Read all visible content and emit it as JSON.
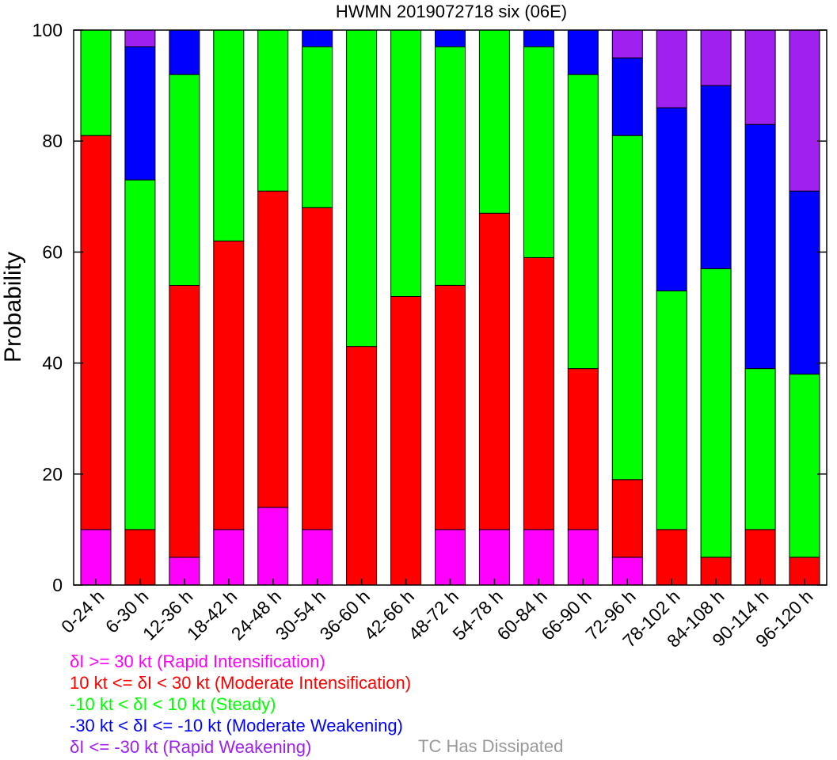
{
  "chart_data": {
    "type": "bar",
    "stacked": true,
    "title": "HWMN 2019072718 six (06E)",
    "xlabel": "",
    "ylabel": "Probability",
    "ylim": [
      0,
      100
    ],
    "yticks": [
      0,
      20,
      40,
      60,
      80,
      100
    ],
    "grid": false,
    "categories": [
      "0-24 h",
      "6-30 h",
      "12-36 h",
      "18-42 h",
      "24-48 h",
      "30-54 h",
      "36-60 h",
      "42-66 h",
      "48-72 h",
      "54-78 h",
      "60-84 h",
      "66-90 h",
      "72-96 h",
      "78-102 h",
      "84-108 h",
      "90-114 h",
      "96-120 h"
    ],
    "series": [
      {
        "name": "δI >= 30 kt (Rapid Intensification)",
        "color": "#ff00ff",
        "values": [
          10,
          0,
          5,
          10,
          14,
          10,
          0,
          0,
          10,
          10,
          10,
          10,
          5,
          0,
          0,
          0,
          0
        ]
      },
      {
        "name": "10 kt <= δI < 30 kt (Moderate Intensification)",
        "color": "#ff0000",
        "values": [
          71,
          10,
          49,
          52,
          57,
          58,
          43,
          52,
          44,
          57,
          49,
          29,
          14,
          10,
          5,
          10,
          5
        ]
      },
      {
        "name": "-10 kt < δI < 10 kt (Steady)",
        "color": "#00ff00",
        "values": [
          19,
          63,
          38,
          38,
          29,
          29,
          57,
          48,
          43,
          33,
          38,
          53,
          62,
          43,
          52,
          29,
          33
        ]
      },
      {
        "name": "-30 kt < δI <= -10 kt (Moderate Weakening)",
        "color": "#0000ff",
        "values": [
          0,
          24,
          8,
          0,
          0,
          3,
          0,
          0,
          3,
          0,
          3,
          8,
          14,
          33,
          33,
          44,
          33
        ]
      },
      {
        "name": "δI <= -30 kt (Rapid Weakening)",
        "color": "#a020f0",
        "values": [
          0,
          3,
          0,
          0,
          0,
          0,
          0,
          0,
          0,
          0,
          0,
          0,
          5,
          14,
          10,
          17,
          29
        ]
      }
    ]
  },
  "legend": {
    "items": [
      {
        "label": "δI >= 30 kt (Rapid Intensification)",
        "color": "#ff00ff"
      },
      {
        "label": "10 kt <= δI < 30 kt (Moderate Intensification)",
        "color": "#ff0000"
      },
      {
        "label": "-10 kt < δI < 10 kt (Steady)",
        "color": "#00ff00"
      },
      {
        "label": "-30 kt < δI <= -10 kt (Moderate Weakening)",
        "color": "#0000ff"
      },
      {
        "label": "δI <= -30 kt (Rapid Weakening)",
        "color": "#a020f0"
      }
    ],
    "dissipated_label": "TC Has Dissipated",
    "dissipated_color": "#999999"
  }
}
